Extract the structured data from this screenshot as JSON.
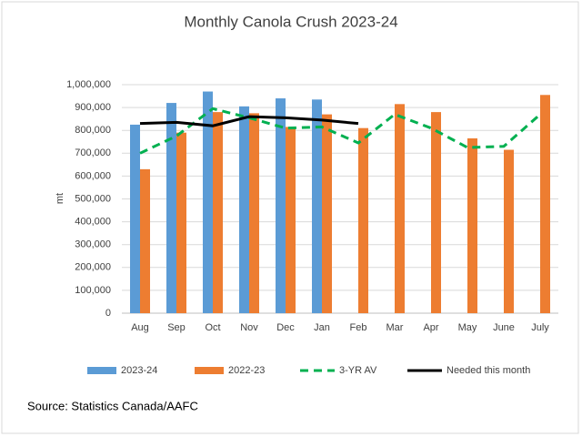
{
  "chart_data": {
    "type": "bar",
    "title": "Monthly Canola Crush 2023-24",
    "y_label": "mt",
    "source": "Source: Statistics Canada/AAFC",
    "categories": [
      "Aug",
      "Sep",
      "Oct",
      "Nov",
      "Dec",
      "Jan",
      "Feb",
      "Mar",
      "Apr",
      "May",
      "June",
      "July"
    ],
    "series": [
      {
        "name": "2023-24",
        "type": "bar",
        "color": "#5b9bd5",
        "values": [
          825000,
          920000,
          970000,
          905000,
          940000,
          935000,
          null,
          null,
          null,
          null,
          null,
          null
        ]
      },
      {
        "name": "2022-23",
        "type": "bar",
        "color": "#ed7d31",
        "values": [
          630000,
          790000,
          880000,
          875000,
          815000,
          870000,
          810000,
          915000,
          880000,
          765000,
          715000,
          955000
        ]
      },
      {
        "name": "3-YR AV",
        "type": "line",
        "style": "dashed",
        "color": "#00b050",
        "values": [
          700000,
          775000,
          895000,
          855000,
          810000,
          815000,
          745000,
          870000,
          810000,
          725000,
          730000,
          870000
        ]
      },
      {
        "name": "Needed this month",
        "type": "line",
        "style": "solid",
        "color": "#000000",
        "values": [
          830000,
          835000,
          820000,
          860000,
          855000,
          845000,
          830000,
          null,
          null,
          null,
          null,
          null
        ]
      }
    ],
    "ylim": [
      0,
      1000000
    ],
    "yticks": [
      0,
      {
        "value": 100000,
        "label": "100,000"
      },
      {
        "value": 200000,
        "label": "200,000"
      },
      {
        "value": 300000,
        "label": "300,000"
      },
      {
        "value": 400000,
        "label": "400,000"
      },
      {
        "value": 500000,
        "label": "500,000"
      },
      {
        "value": 600000,
        "label": "600,000"
      },
      {
        "value": 700000,
        "label": "700,000"
      },
      {
        "value": 800000,
        "label": "800,000"
      },
      {
        "value": 900000,
        "label": "900,000"
      },
      {
        "value": 1000000,
        "label": "1,000,000"
      }
    ],
    "grid": true
  }
}
